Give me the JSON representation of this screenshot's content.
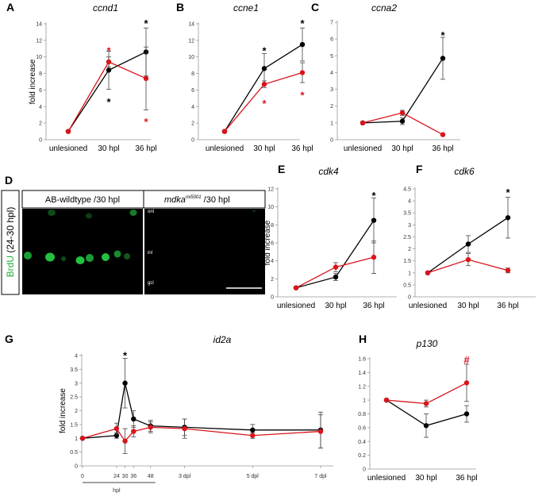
{
  "colors": {
    "wt": "#000000",
    "mutant": "#d9141b",
    "brdu_green": "#1fae3a"
  },
  "chart_data": [
    {
      "id": "A",
      "type": "line",
      "title": "ccnd1",
      "ylabel": "fold increase",
      "categories": [
        "unlesioned",
        "30 hpl",
        "36 hpl"
      ],
      "ylim": [
        0,
        14
      ],
      "yticks": [
        0,
        2,
        4,
        6,
        8,
        10,
        12,
        14
      ],
      "series": [
        {
          "color": "#000000",
          "values": [
            1,
            8.4,
            10.6
          ],
          "err": [
            0,
            2.3,
            2.9
          ]
        },
        {
          "color": "#d9141b",
          "values": [
            1,
            9.4,
            7.4
          ],
          "err": [
            0,
            0.6,
            3.8
          ]
        }
      ],
      "annotations": [
        {
          "text": "*",
          "color": "#000000",
          "cat": 2,
          "y": 14.2
        },
        {
          "text": "*",
          "color": "#d9141b",
          "cat": 1,
          "y": 10.9
        },
        {
          "text": "*",
          "color": "#000000",
          "cat": 1,
          "y": 4.7
        },
        {
          "text": "*",
          "color": "#d9141b",
          "cat": 2,
          "y": 2.3
        }
      ]
    },
    {
      "id": "B",
      "type": "line",
      "title": "ccne1",
      "ylabel": "",
      "categories": [
        "unlesioned",
        "30 hpl",
        "36 hpl"
      ],
      "ylim": [
        0,
        14
      ],
      "yticks": [
        0,
        2,
        4,
        6,
        8,
        10,
        12,
        14
      ],
      "series": [
        {
          "color": "#000000",
          "values": [
            1,
            8.6,
            11.5
          ],
          "err": [
            0,
            1.8,
            2.0
          ]
        },
        {
          "color": "#d9141b",
          "values": [
            1,
            6.7,
            8.1
          ],
          "err": [
            0,
            0.4,
            1.2
          ]
        }
      ],
      "annotations": [
        {
          "text": "*",
          "color": "#000000",
          "cat": 2,
          "y": 14.2
        },
        {
          "text": "*",
          "color": "#000000",
          "cat": 1,
          "y": 10.9
        },
        {
          "text": "*",
          "color": "#d9141b",
          "cat": 1,
          "y": 4.5
        },
        {
          "text": "*",
          "color": "#d9141b",
          "cat": 2,
          "y": 5.5
        }
      ]
    },
    {
      "id": "C",
      "type": "line",
      "title": "ccna2",
      "ylabel": "",
      "categories": [
        "unlesioned",
        "30 hpl",
        "36 hpl"
      ],
      "ylim": [
        0,
        7
      ],
      "yticks": [
        0,
        1,
        2,
        3,
        4,
        5,
        6,
        7
      ],
      "series": [
        {
          "color": "#000000",
          "values": [
            1,
            1.1,
            4.85
          ],
          "err": [
            0,
            0.2,
            1.25
          ]
        },
        {
          "color": "#d9141b",
          "values": [
            1,
            1.6,
            0.3
          ],
          "err": [
            0,
            0.15,
            0
          ]
        }
      ],
      "annotations": [
        {
          "text": "*",
          "color": "#000000",
          "cat": 2,
          "y": 6.3
        }
      ]
    },
    {
      "id": "E",
      "type": "line",
      "title": "cdk4",
      "ylabel": "fold increase",
      "categories": [
        "unlesioned",
        "30 hpl",
        "36 hpl"
      ],
      "ylim": [
        0,
        12
      ],
      "yticks": [
        0,
        2,
        4,
        6,
        8,
        10,
        12
      ],
      "series": [
        {
          "color": "#000000",
          "values": [
            1,
            2.2,
            8.5
          ],
          "err": [
            0,
            0.4,
            2.5
          ]
        },
        {
          "color": "#d9141b",
          "values": [
            1,
            3.3,
            4.4
          ],
          "err": [
            0,
            0.5,
            1.8
          ]
        }
      ],
      "annotations": [
        {
          "text": "*",
          "color": "#000000",
          "cat": 2,
          "y": 11.4
        }
      ]
    },
    {
      "id": "F",
      "type": "line",
      "title": "cdk6",
      "ylabel": "",
      "categories": [
        "unlesioned",
        "30 hpl",
        "36 hpl"
      ],
      "ylim": [
        0,
        4.5
      ],
      "yticks": [
        0,
        0.5,
        1,
        1.5,
        2,
        2.5,
        3,
        3.5,
        4,
        4.5
      ],
      "series": [
        {
          "color": "#000000",
          "values": [
            1,
            2.2,
            3.3
          ],
          "err": [
            0,
            0.35,
            0.85
          ]
        },
        {
          "color": "#d9141b",
          "values": [
            1,
            1.55,
            1.1
          ],
          "err": [
            0,
            0.25,
            0.1
          ]
        }
      ],
      "annotations": [
        {
          "text": "*",
          "color": "#000000",
          "cat": 2,
          "y": 4.4
        }
      ]
    },
    {
      "id": "G",
      "type": "line",
      "title": "id2a",
      "ylabel": "fold increase",
      "x": [
        0,
        24,
        30,
        36,
        48,
        72,
        120,
        168
      ],
      "xtick_labels": [
        "0",
        "24",
        "30",
        "36",
        "48",
        "3 dpl",
        "5 dpl",
        "7 dpl"
      ],
      "xgroup_label": "hpl",
      "ylim": [
        0,
        4
      ],
      "yticks": [
        0,
        0.5,
        1,
        1.5,
        2,
        2.5,
        3,
        3.5,
        4
      ],
      "series": [
        {
          "color": "#000000",
          "x": [
            0,
            24,
            30,
            36,
            48,
            72,
            120,
            168
          ],
          "values": [
            1,
            1.1,
            3.0,
            1.7,
            1.45,
            1.4,
            1.3,
            1.3
          ],
          "err": [
            0,
            0.1,
            0.9,
            0.3,
            0.2,
            0.3,
            0.2,
            0.65
          ]
        },
        {
          "color": "#d9141b",
          "x": [
            0,
            24,
            30,
            36,
            48,
            72,
            120,
            168
          ],
          "values": [
            1,
            1.35,
            0.9,
            1.25,
            1.4,
            1.35,
            1.1,
            1.25
          ],
          "err": [
            0,
            0.2,
            0.45,
            0.2,
            0.2,
            0.35,
            0.1,
            0.6
          ]
        }
      ],
      "annotations": [
        {
          "text": "*",
          "color": "#000000",
          "xval": 30,
          "y": 4.05
        }
      ]
    },
    {
      "id": "H",
      "type": "line",
      "title": "p130",
      "ylabel": "",
      "categories": [
        "unlesioned",
        "30 hpl",
        "36 hpl"
      ],
      "ylim": [
        0,
        1.6
      ],
      "yticks": [
        0,
        0.2,
        0.4,
        0.6,
        0.8,
        1,
        1.2,
        1.4,
        1.6
      ],
      "series": [
        {
          "color": "#000000",
          "values": [
            1,
            0.63,
            0.8
          ],
          "err": [
            0,
            0.17,
            0.12
          ]
        },
        {
          "color": "#d9141b",
          "values": [
            1,
            0.95,
            1.25
          ],
          "err": [
            0,
            0.05,
            0.27
          ]
        }
      ],
      "annotations": [
        {
          "text": "#",
          "color": "#d9141b",
          "cat": 2,
          "y": 1.6
        }
      ]
    }
  ],
  "micrograph": {
    "label": "D",
    "side_label_a": "BrdU",
    "side_label_b": " (24-30 hpl)",
    "left_header": "AB-wildtype /30 hpl",
    "right_header_gene": "mdka",
    "right_header_sup": "mi5001",
    "right_header_tail": " /30 hpl",
    "layers": [
      "onl",
      "inl",
      "gcl"
    ]
  }
}
